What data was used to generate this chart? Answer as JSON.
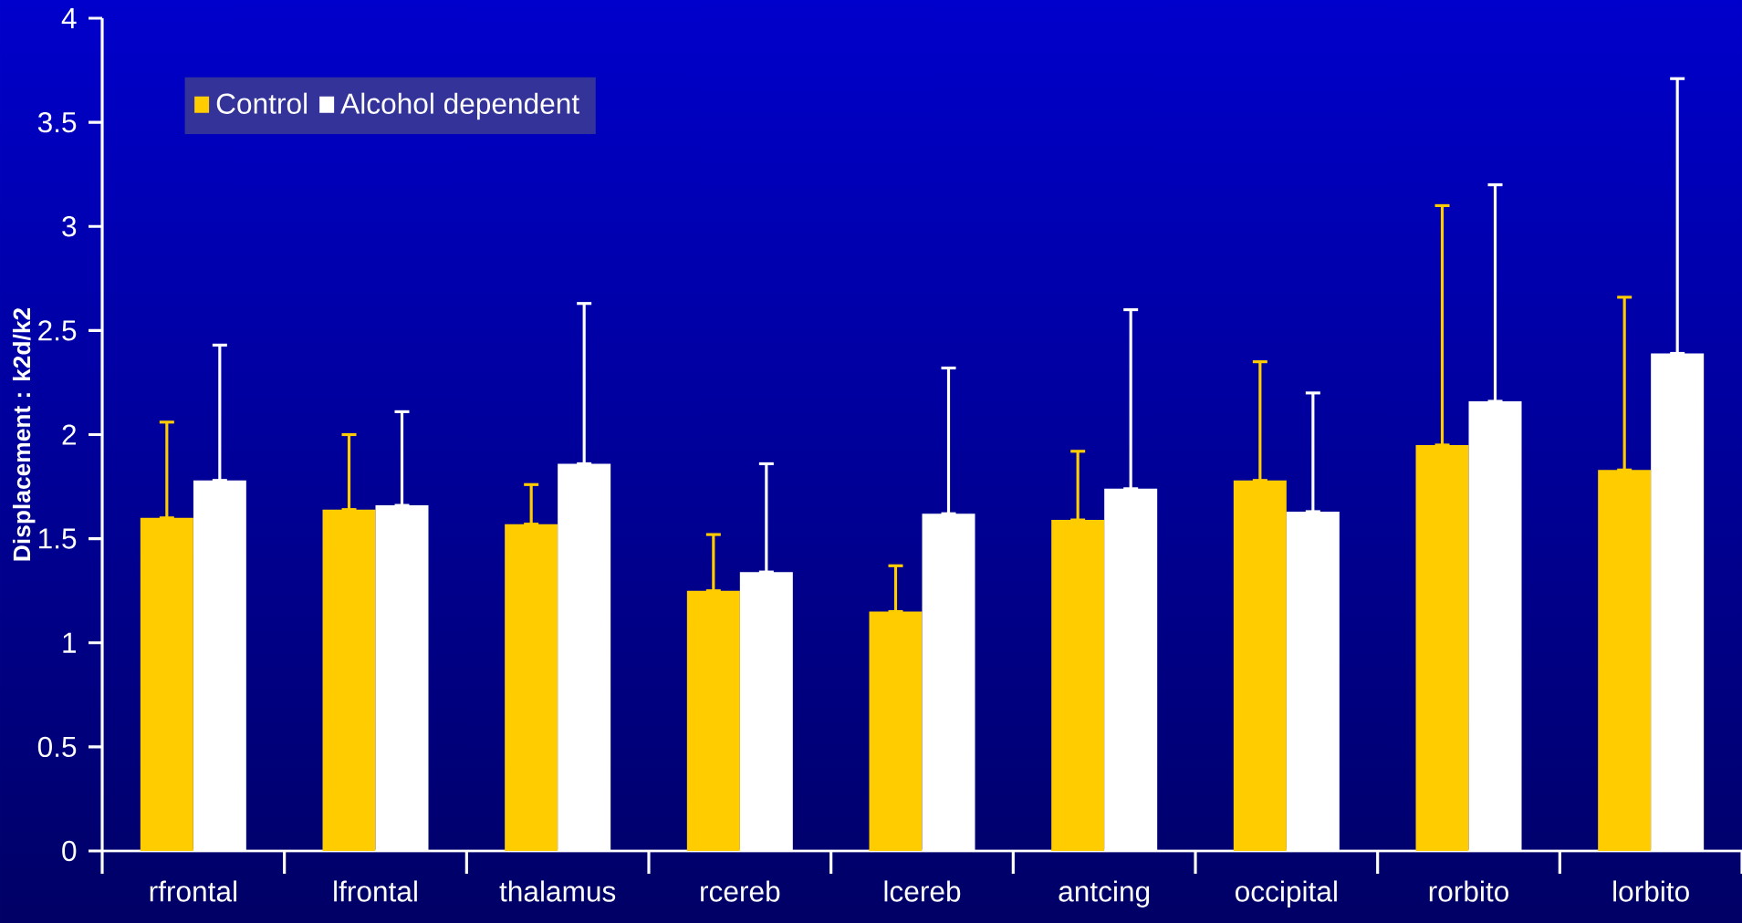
{
  "chart_data": {
    "type": "bar",
    "ylabel": "Displacement : k2d/k2",
    "categories": [
      "rfrontal",
      "lfrontal",
      "thalamus",
      "rcereb",
      "lcereb",
      "antcing",
      "occipital",
      "rorbito",
      "lorbito"
    ],
    "series": [
      {
        "name": "Control",
        "color": "#ffcc00",
        "values": [
          1.6,
          1.64,
          1.57,
          1.25,
          1.15,
          1.59,
          1.78,
          1.95,
          1.83
        ],
        "errors": [
          [
            1.6,
            2.06
          ],
          [
            1.64,
            2.0
          ],
          [
            1.57,
            1.76
          ],
          [
            1.25,
            1.52
          ],
          [
            1.15,
            1.37
          ],
          [
            1.59,
            1.92
          ],
          [
            1.78,
            2.35
          ],
          [
            1.95,
            3.1
          ],
          [
            1.83,
            2.66
          ]
        ]
      },
      {
        "name": "Alcohol dependent",
        "color": "#ffffff",
        "values": [
          1.78,
          1.66,
          1.86,
          1.34,
          1.62,
          1.74,
          1.63,
          2.16,
          2.39
        ],
        "errors": [
          [
            1.78,
            2.43
          ],
          [
            1.66,
            2.11
          ],
          [
            1.86,
            2.63
          ],
          [
            1.34,
            1.86
          ],
          [
            1.62,
            2.32
          ],
          [
            1.74,
            2.6
          ],
          [
            1.63,
            2.2
          ],
          [
            2.16,
            3.2
          ],
          [
            2.39,
            3.71
          ]
        ]
      }
    ],
    "ylim": [
      0,
      4
    ],
    "yticks": [
      0,
      0.5,
      1,
      1.5,
      2,
      2.5,
      3,
      3.5,
      4
    ],
    "grid": false,
    "legend": "top left"
  }
}
